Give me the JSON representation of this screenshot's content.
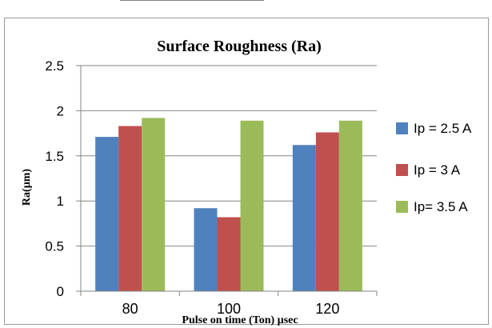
{
  "chart_data": {
    "type": "bar",
    "title": "Surface Roughness (Ra)",
    "xlabel": "Pulse on time  (Ton) µsec",
    "ylabel": "Ra(µm)",
    "categories": [
      "80",
      "100",
      "120"
    ],
    "series": [
      {
        "name": "Ip = 2.5 A",
        "color": "#4F81BD",
        "values": [
          1.71,
          0.92,
          1.62
        ]
      },
      {
        "name": "Ip = 3 A",
        "color": "#C0504D",
        "values": [
          1.83,
          0.82,
          1.76
        ]
      },
      {
        "name": "Ip= 3.5 A",
        "color": "#9BBB59",
        "values": [
          1.92,
          1.89,
          1.89
        ]
      }
    ],
    "ylim": [
      0,
      2.5
    ],
    "yticks": [
      "0",
      "0.5",
      "1",
      "1.5",
      "2",
      "2.5"
    ],
    "grid": true,
    "legend": "right"
  }
}
